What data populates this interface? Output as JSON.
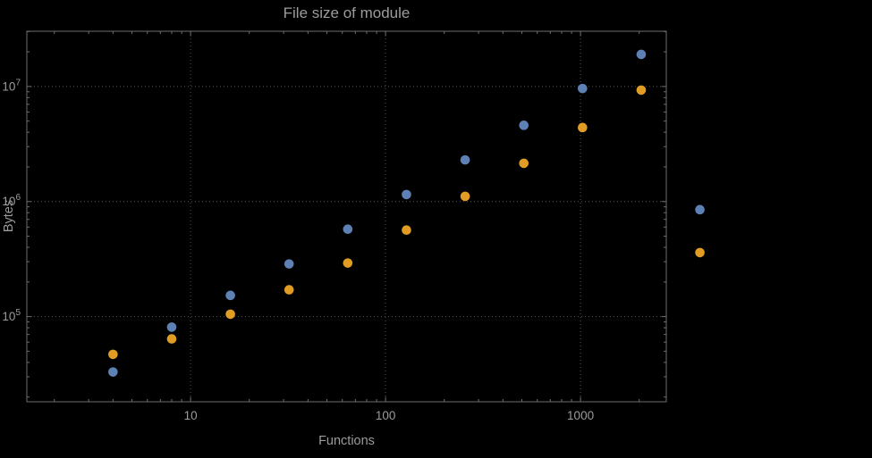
{
  "chart_data": {
    "type": "scatter",
    "title": "File size of module",
    "xlabel": "Functions",
    "ylabel": "Bytes",
    "x_scale": "log",
    "y_scale": "log",
    "grid": "dotted",
    "legend": "none",
    "x_ticks": [
      10,
      100,
      1000
    ],
    "x_tick_labels": [
      "10",
      "100",
      "1000"
    ],
    "y_ticks": [
      100000,
      1000000,
      10000000
    ],
    "y_tick_exponents": [
      5,
      6,
      7
    ],
    "xlog_range": [
      0.16,
      3.44
    ],
    "ylog_range": [
      4.26,
      7.48
    ],
    "x": [
      4,
      8,
      16,
      32,
      64,
      128,
      256,
      512,
      1024,
      2048,
      4096
    ],
    "series": [
      {
        "name": "blue",
        "color": "#5e81b5",
        "values": [
          33000,
          81000,
          153000,
          287000,
          575000,
          1150000,
          2300000,
          4600000,
          9600000,
          19000000,
          850000
        ]
      },
      {
        "name": "orange",
        "color": "#e19c24",
        "values": [
          47000,
          64000,
          105000,
          171000,
          292000,
          565000,
          1110000,
          2150000,
          4400000,
          9300000,
          360000
        ]
      }
    ],
    "colors": {
      "background": "#000000",
      "frame": "#6e6e6e",
      "grid": "#545454",
      "text": "#9c9c9c"
    }
  }
}
